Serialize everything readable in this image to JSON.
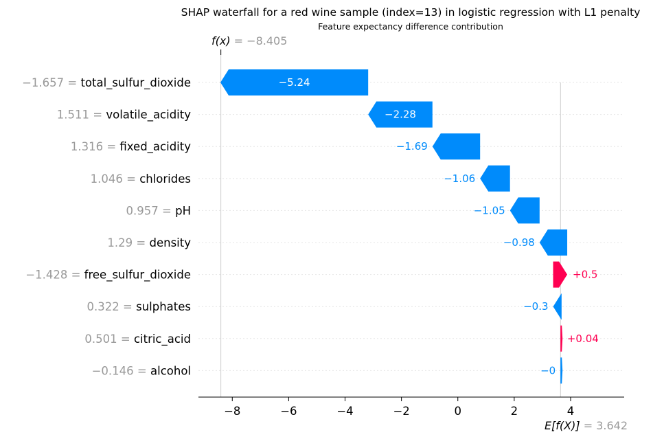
{
  "chart_data": {
    "type": "waterfall",
    "title": "SHAP waterfall for a red wine sample (index=13) in logistic regression with L1 penalty",
    "subtitle": "Feature expectancy difference contribution",
    "fx_label": "f(x)",
    "fx_value": "−8.405",
    "fx": -8.405,
    "efx_label": "E[f(X)]",
    "efx_value": "3.642",
    "base_value": 3.642,
    "xlim": [
      -9.2,
      5.9
    ],
    "xticks": [
      -8,
      -6,
      -4,
      -2,
      0,
      2,
      4
    ],
    "xtick_labels": [
      "−8",
      "−6",
      "−4",
      "−2",
      "0",
      "2",
      "4"
    ],
    "grid": false,
    "colors": {
      "negative": "#008bfb",
      "positive": "#ff0051",
      "feature_value": "#999999"
    },
    "features": [
      {
        "name": "total_sulfur_dioxide",
        "feature_value": "−1.657",
        "shap": -5.24,
        "label": "−5.24"
      },
      {
        "name": "volatile_acidity",
        "feature_value": "1.511",
        "shap": -2.28,
        "label": "−2.28"
      },
      {
        "name": "fixed_acidity",
        "feature_value": "1.316",
        "shap": -1.69,
        "label": "−1.69"
      },
      {
        "name": "chlorides",
        "feature_value": "1.046",
        "shap": -1.06,
        "label": "−1.06"
      },
      {
        "name": "pH",
        "feature_value": "0.957",
        "shap": -1.05,
        "label": "−1.05"
      },
      {
        "name": "density",
        "feature_value": "1.29",
        "shap": -0.98,
        "label": "−0.98"
      },
      {
        "name": "free_sulfur_dioxide",
        "feature_value": "−1.428",
        "shap": 0.5,
        "label": "+0.5"
      },
      {
        "name": "sulphates",
        "feature_value": "0.322",
        "shap": -0.3,
        "label": "−0.3"
      },
      {
        "name": "citric_acid",
        "feature_value": "0.501",
        "shap": 0.04,
        "label": "+0.04"
      },
      {
        "name": "alcohol",
        "feature_value": "−0.146",
        "shap": -0.002,
        "label": "−0"
      }
    ]
  }
}
